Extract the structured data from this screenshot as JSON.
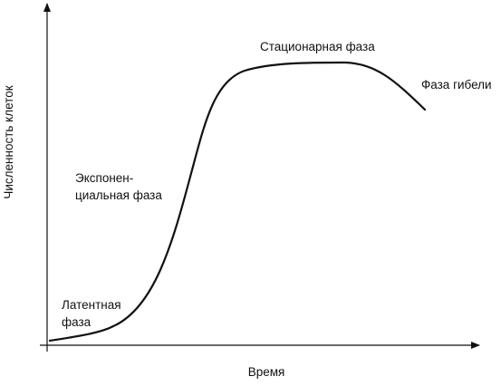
{
  "axes": {
    "x_label": "Время",
    "y_label": "Численность клеток"
  },
  "phases": {
    "lag": [
      "Латентная",
      "фаза"
    ],
    "exponential": [
      "Экспонен-",
      "циальная фаза"
    ],
    "stationary": "Стационарная фаза",
    "death": "Фаза гибели"
  },
  "colors": {
    "line": "#111111",
    "background": "#ffffff"
  }
}
